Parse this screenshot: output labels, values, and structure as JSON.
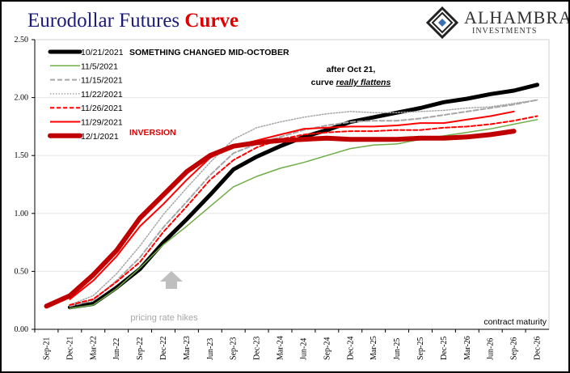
{
  "header": {
    "title_main": "Eurodollar Futures ",
    "title_accent": "Curve",
    "logo_name": "ALHAMBRA",
    "logo_sub": "INVESTMENTS"
  },
  "annotations": {
    "changed": "SOMETHING CHANGED MID-OCTOBER",
    "flatten_line1": "after Oct 21,",
    "flatten_line2_prefix": "curve ",
    "flatten_line2_emph": "really flattens",
    "inversion": "INVERSION",
    "hikes": "pricing rate hikes",
    "xlabel": "contract maturity"
  },
  "chart_data": {
    "type": "line",
    "title": "Eurodollar Futures Curve",
    "xlabel": "contract maturity",
    "ylabel": "",
    "ylim": [
      0,
      2.5
    ],
    "yticks": [
      "0.00",
      "0.50",
      "1.00",
      "1.50",
      "2.00",
      "2.50"
    ],
    "categories": [
      "Sep-21",
      "Dec-21",
      "Mar-22",
      "Jun-22",
      "Sep-22",
      "Dec-22",
      "Mar-23",
      "Jun-23",
      "Sep-23",
      "Dec-23",
      "Mar-24",
      "Jun-24",
      "Sep-24",
      "Dec-24",
      "Mar-25",
      "Jun-25",
      "Sep-25",
      "Dec-25",
      "Mar-26",
      "Jun-26",
      "Sep-26",
      "Dec-26"
    ],
    "grid": "horizontal",
    "legend_position": "top-left",
    "series": [
      {
        "name": "10/21/2021",
        "color": "#000000",
        "width": 5,
        "dash": "",
        "values": [
          null,
          0.19,
          0.22,
          0.36,
          0.52,
          0.75,
          0.95,
          1.16,
          1.38,
          1.49,
          1.58,
          1.66,
          1.72,
          1.79,
          1.83,
          1.87,
          1.91,
          1.96,
          1.99,
          2.03,
          2.06,
          2.11
        ]
      },
      {
        "name": "11/5/2021",
        "color": "#70ad47",
        "width": 1.5,
        "dash": "",
        "values": [
          null,
          0.18,
          0.21,
          0.35,
          0.53,
          0.73,
          0.89,
          1.06,
          1.23,
          1.32,
          1.39,
          1.44,
          1.5,
          1.56,
          1.59,
          1.6,
          1.64,
          1.67,
          1.7,
          1.73,
          1.77,
          1.81
        ]
      },
      {
        "name": "11/15/2021",
        "color": "#a6a6a6",
        "width": 2,
        "dash": "6,3",
        "values": [
          null,
          0.2,
          0.25,
          0.42,
          0.62,
          0.88,
          1.1,
          1.33,
          1.52,
          1.6,
          1.66,
          1.72,
          1.76,
          1.79,
          1.8,
          1.8,
          1.82,
          1.85,
          1.88,
          1.91,
          1.94,
          1.98
        ]
      },
      {
        "name": "11/22/2021",
        "color": "#a6a6a6",
        "width": 1.5,
        "dash": "1.5,2",
        "values": [
          null,
          0.21,
          0.29,
          0.48,
          0.72,
          0.99,
          1.22,
          1.44,
          1.64,
          1.74,
          1.79,
          1.83,
          1.86,
          1.88,
          1.87,
          1.87,
          1.88,
          1.89,
          1.91,
          1.92,
          1.95,
          1.98
        ]
      },
      {
        "name": "11/26/2021",
        "color": "#ff0000",
        "width": 2,
        "dash": "5,3",
        "values": [
          null,
          0.21,
          0.26,
          0.41,
          0.58,
          0.84,
          1.06,
          1.29,
          1.46,
          1.57,
          1.64,
          1.68,
          1.7,
          1.71,
          1.71,
          1.72,
          1.72,
          1.74,
          1.75,
          1.77,
          1.8,
          1.84
        ]
      },
      {
        "name": "11/29/2021",
        "color": "#ff0000",
        "width": 2,
        "dash": "",
        "values": [
          null,
          0.26,
          0.42,
          0.63,
          0.89,
          1.08,
          1.29,
          1.48,
          1.58,
          1.63,
          1.68,
          1.73,
          1.74,
          1.75,
          1.75,
          1.76,
          1.78,
          1.78,
          1.81,
          1.84,
          1.88,
          null
        ]
      },
      {
        "name": "12/1/2021",
        "color": "#c00000",
        "width": 6,
        "dash": "",
        "values": [
          0.2,
          0.29,
          0.47,
          0.68,
          0.96,
          1.16,
          1.36,
          1.5,
          1.58,
          1.61,
          1.63,
          1.64,
          1.65,
          1.64,
          1.64,
          1.64,
          1.65,
          1.65,
          1.66,
          1.68,
          1.71,
          null
        ]
      }
    ]
  }
}
